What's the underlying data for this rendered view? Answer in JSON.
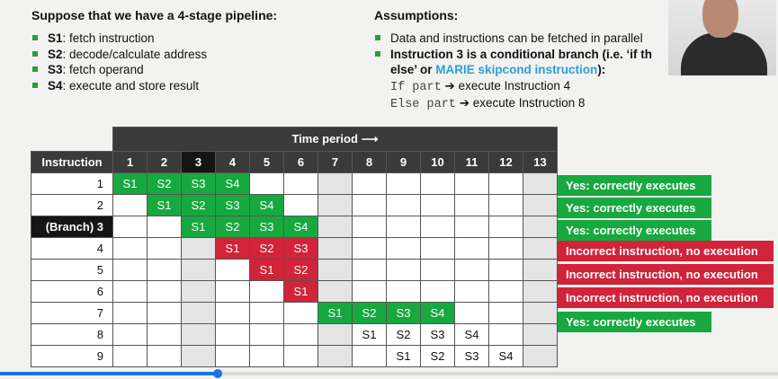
{
  "left_heading": "Suppose that we have a 4-stage pipeline:",
  "stages": [
    {
      "key": "S1",
      "text": ": fetch instruction"
    },
    {
      "key": "S2",
      "text": ": decode/calculate address"
    },
    {
      "key": "S3",
      "text": ": fetch operand"
    },
    {
      "key": "S4",
      "text": ": execute and store result"
    }
  ],
  "right_heading": "Assumptions:",
  "assumption_1": "Data and instructions can be fetched in parallel",
  "assumption_2_bold": "Instruction 3 is a conditional branch (i.e. ‘if th",
  "assumption_2_cont": "else’ or ",
  "assumption_2_marie": "MARIE skipcond instruction",
  "assumption_2_end": "):",
  "if_code": "If part",
  "if_text": "execute Instruction 4",
  "else_code": "Else part",
  "else_text": "execute Instruction 8",
  "arrow_glyph": "➔",
  "table": {
    "time_period_label": "Time period",
    "time_arrow": "⟶",
    "instruction_header": "Instruction",
    "time_headers": [
      "1",
      "2",
      "3",
      "4",
      "5",
      "6",
      "7",
      "8",
      "9",
      "10",
      "11",
      "12",
      "13"
    ],
    "rows": [
      {
        "label": "1",
        "cells": [
          "S1",
          "S2",
          "S3",
          "S4",
          "",
          "",
          "",
          "",
          "",
          "",
          "",
          "",
          ""
        ],
        "colors": [
          "g",
          "g",
          "g",
          "g",
          "w",
          "w",
          "w",
          "w",
          "w",
          "w",
          "w",
          "w",
          "w"
        ]
      },
      {
        "label": "2",
        "cells": [
          "",
          "S1",
          "S2",
          "S3",
          "S4",
          "",
          "",
          "",
          "",
          "",
          "",
          "",
          ""
        ],
        "colors": [
          "w",
          "g",
          "g",
          "g",
          "g",
          "w",
          "w",
          "w",
          "w",
          "w",
          "w",
          "w",
          "w"
        ]
      },
      {
        "label": "(Branch) 3",
        "cells": [
          "",
          "",
          "S1",
          "S2",
          "S3",
          "S4",
          "",
          "",
          "",
          "",
          "",
          "",
          ""
        ],
        "colors": [
          "w",
          "w",
          "g",
          "g",
          "g",
          "g",
          "w",
          "w",
          "w",
          "w",
          "w",
          "w",
          "w"
        ]
      },
      {
        "label": "4",
        "cells": [
          "",
          "",
          "",
          "S1",
          "S2",
          "S3",
          "",
          "",
          "",
          "",
          "",
          "",
          ""
        ],
        "colors": [
          "w",
          "w",
          "w",
          "r",
          "r",
          "r",
          "w",
          "w",
          "w",
          "w",
          "w",
          "w",
          "w"
        ]
      },
      {
        "label": "5",
        "cells": [
          "",
          "",
          "",
          "",
          "S1",
          "S2",
          "",
          "",
          "",
          "",
          "",
          "",
          ""
        ],
        "colors": [
          "w",
          "w",
          "w",
          "w",
          "r",
          "r",
          "w",
          "w",
          "w",
          "w",
          "w",
          "w",
          "w"
        ]
      },
      {
        "label": "6",
        "cells": [
          "",
          "",
          "",
          "",
          "",
          "S1",
          "",
          "",
          "",
          "",
          "",
          "",
          ""
        ],
        "colors": [
          "w",
          "w",
          "w",
          "w",
          "w",
          "r",
          "w",
          "w",
          "w",
          "w",
          "w",
          "w",
          "w"
        ]
      },
      {
        "label": "7",
        "cells": [
          "",
          "",
          "",
          "",
          "",
          "",
          "S1",
          "S2",
          "S3",
          "S4",
          "",
          "",
          ""
        ],
        "colors": [
          "w",
          "w",
          "w",
          "w",
          "w",
          "w",
          "g",
          "g",
          "g",
          "g",
          "w",
          "w",
          "w"
        ]
      },
      {
        "label": "8",
        "cells": [
          "",
          "",
          "",
          "",
          "",
          "",
          "",
          "S1",
          "S2",
          "S3",
          "S4",
          "",
          ""
        ],
        "colors": [
          "w",
          "w",
          "w",
          "w",
          "w",
          "w",
          "w",
          "w",
          "w",
          "w",
          "w",
          "w",
          "w"
        ]
      },
      {
        "label": "9",
        "cells": [
          "",
          "",
          "",
          "",
          "",
          "",
          "",
          "",
          "S1",
          "S2",
          "S3",
          "S4",
          ""
        ],
        "colors": [
          "w",
          "w",
          "w",
          "w",
          "w",
          "w",
          "w",
          "w",
          "w",
          "w",
          "w",
          "w",
          "w"
        ]
      }
    ]
  },
  "statuses": [
    {
      "text": "Yes: correctly executes",
      "kind": "ok"
    },
    {
      "text": "Yes: correctly executes",
      "kind": "ok"
    },
    {
      "text": "Yes: correctly executes",
      "kind": "ok"
    },
    {
      "text": "Incorrect instruction, no execution",
      "kind": "bad"
    },
    {
      "text": "Incorrect instruction, no execution",
      "kind": "bad"
    },
    {
      "text": "Incorrect instruction, no execution",
      "kind": "bad"
    },
    {
      "text": "Yes: correctly executes",
      "kind": "ok"
    }
  ],
  "colors": {
    "green": "#17a93f",
    "red": "#d1233a",
    "header": "#3a3a3a",
    "bullet": "#2a9d3c",
    "marie": "#2aa0d8",
    "progress": "#1a73e8"
  },
  "video_progress": 0.28
}
